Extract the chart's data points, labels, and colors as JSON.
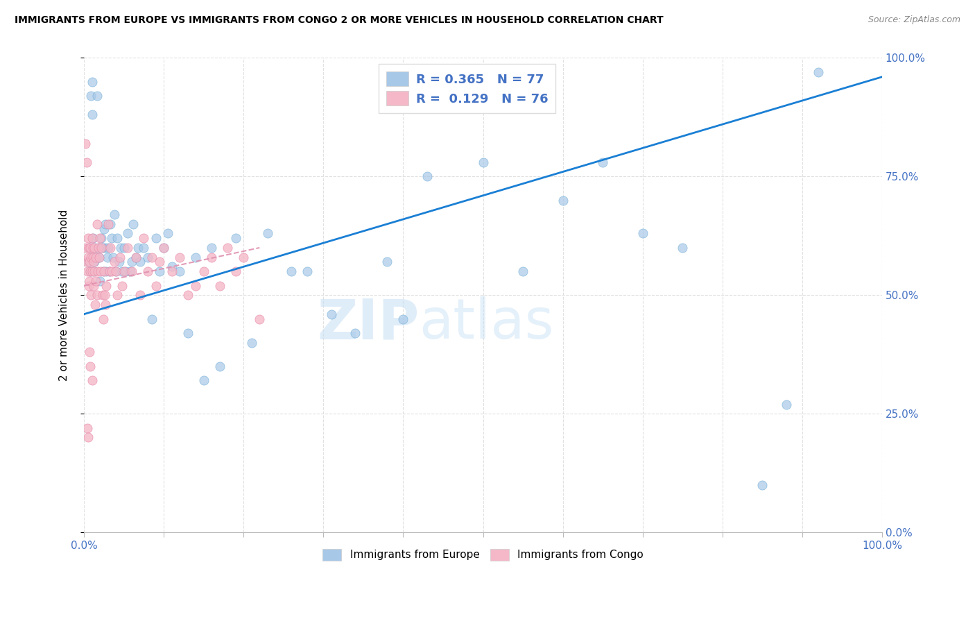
{
  "title": "IMMIGRANTS FROM EUROPE VS IMMIGRANTS FROM CONGO 2 OR MORE VEHICLES IN HOUSEHOLD CORRELATION CHART",
  "source": "Source: ZipAtlas.com",
  "ylabel": "2 or more Vehicles in Household",
  "legend_europe_label": "Immigrants from Europe",
  "legend_congo_label": "Immigrants from Congo",
  "R_europe": "0.365",
  "N_europe": "77",
  "R_congo": "0.129",
  "N_congo": "76",
  "europe_color": "#a8c8e8",
  "europe_edge_color": "#6aaad4",
  "congo_color": "#f4b8c8",
  "congo_edge_color": "#e888a8",
  "europe_line_color": "#1a7fd4",
  "congo_line_color": "#e090b0",
  "watermark_color": "#d0e8f8",
  "background_color": "#ffffff",
  "grid_color": "#e0e0e0",
  "tick_label_color": "#4472c4",
  "title_color": "#000000",
  "source_color": "#888888",
  "europe_x": [
    0.005,
    0.007,
    0.008,
    0.009,
    0.01,
    0.01,
    0.011,
    0.011,
    0.012,
    0.013,
    0.014,
    0.015,
    0.016,
    0.018,
    0.019,
    0.02,
    0.022,
    0.023,
    0.024,
    0.025,
    0.026,
    0.027,
    0.028,
    0.029,
    0.03,
    0.032,
    0.033,
    0.035,
    0.036,
    0.038,
    0.04,
    0.042,
    0.044,
    0.046,
    0.048,
    0.05,
    0.052,
    0.055,
    0.058,
    0.06,
    0.062,
    0.065,
    0.068,
    0.07,
    0.075,
    0.08,
    0.085,
    0.09,
    0.095,
    0.1,
    0.105,
    0.11,
    0.12,
    0.13,
    0.14,
    0.15,
    0.16,
    0.17,
    0.19,
    0.21,
    0.23,
    0.26,
    0.28,
    0.31,
    0.34,
    0.38,
    0.4,
    0.43,
    0.5,
    0.55,
    0.6,
    0.65,
    0.7,
    0.75,
    0.85,
    0.88,
    0.92
  ],
  "europe_y": [
    0.57,
    0.6,
    0.55,
    0.92,
    0.95,
    0.88,
    0.58,
    0.62,
    0.55,
    0.57,
    0.6,
    0.58,
    0.92,
    0.6,
    0.58,
    0.53,
    0.62,
    0.6,
    0.55,
    0.64,
    0.6,
    0.65,
    0.55,
    0.58,
    0.6,
    0.55,
    0.65,
    0.62,
    0.58,
    0.67,
    0.55,
    0.62,
    0.57,
    0.6,
    0.55,
    0.6,
    0.55,
    0.63,
    0.55,
    0.57,
    0.65,
    0.58,
    0.6,
    0.57,
    0.6,
    0.58,
    0.45,
    0.62,
    0.55,
    0.6,
    0.63,
    0.56,
    0.55,
    0.42,
    0.58,
    0.32,
    0.6,
    0.35,
    0.62,
    0.4,
    0.63,
    0.55,
    0.55,
    0.46,
    0.42,
    0.57,
    0.45,
    0.75,
    0.78,
    0.55,
    0.7,
    0.78,
    0.63,
    0.6,
    0.1,
    0.27,
    0.97
  ],
  "congo_x": [
    0.002,
    0.003,
    0.004,
    0.005,
    0.005,
    0.006,
    0.006,
    0.007,
    0.007,
    0.008,
    0.008,
    0.009,
    0.009,
    0.01,
    0.01,
    0.011,
    0.011,
    0.012,
    0.012,
    0.013,
    0.013,
    0.014,
    0.015,
    0.015,
    0.016,
    0.016,
    0.017,
    0.018,
    0.019,
    0.02,
    0.021,
    0.022,
    0.023,
    0.024,
    0.025,
    0.026,
    0.027,
    0.028,
    0.03,
    0.032,
    0.033,
    0.035,
    0.038,
    0.04,
    0.042,
    0.045,
    0.048,
    0.05,
    0.055,
    0.06,
    0.065,
    0.07,
    0.075,
    0.08,
    0.085,
    0.09,
    0.095,
    0.1,
    0.11,
    0.12,
    0.13,
    0.14,
    0.15,
    0.16,
    0.17,
    0.18,
    0.19,
    0.2,
    0.22,
    0.002,
    0.003,
    0.004,
    0.005,
    0.007,
    0.008,
    0.01
  ],
  "congo_y": [
    0.6,
    0.57,
    0.55,
    0.62,
    0.58,
    0.6,
    0.52,
    0.57,
    0.53,
    0.6,
    0.55,
    0.58,
    0.5,
    0.62,
    0.55,
    0.58,
    0.6,
    0.52,
    0.57,
    0.55,
    0.6,
    0.48,
    0.58,
    0.53,
    0.5,
    0.65,
    0.55,
    0.6,
    0.58,
    0.62,
    0.55,
    0.6,
    0.5,
    0.45,
    0.55,
    0.5,
    0.48,
    0.52,
    0.65,
    0.55,
    0.6,
    0.55,
    0.57,
    0.55,
    0.5,
    0.58,
    0.52,
    0.55,
    0.6,
    0.55,
    0.58,
    0.5,
    0.62,
    0.55,
    0.58,
    0.52,
    0.57,
    0.6,
    0.55,
    0.58,
    0.5,
    0.52,
    0.55,
    0.58,
    0.52,
    0.6,
    0.55,
    0.58,
    0.45,
    0.82,
    0.78,
    0.22,
    0.2,
    0.38,
    0.35,
    0.32
  ],
  "europe_line_x0": 0.0,
  "europe_line_x1": 1.0,
  "europe_line_y0": 0.46,
  "europe_line_y1": 0.96,
  "congo_line_x0": 0.0,
  "congo_line_x1": 0.22,
  "congo_line_y0": 0.52,
  "congo_line_y1": 0.6,
  "xlim": [
    0,
    1
  ],
  "ylim": [
    0,
    1
  ],
  "xticks": [
    0,
    0.1,
    0.2,
    0.3,
    0.4,
    0.5,
    0.6,
    0.7,
    0.8,
    0.9,
    1.0
  ],
  "yticks_right": [
    0.0,
    0.25,
    0.5,
    0.75,
    1.0
  ],
  "ytick_labels_right": [
    "0.0%",
    "25.0%",
    "50.0%",
    "75.0%",
    "100.0%"
  ]
}
